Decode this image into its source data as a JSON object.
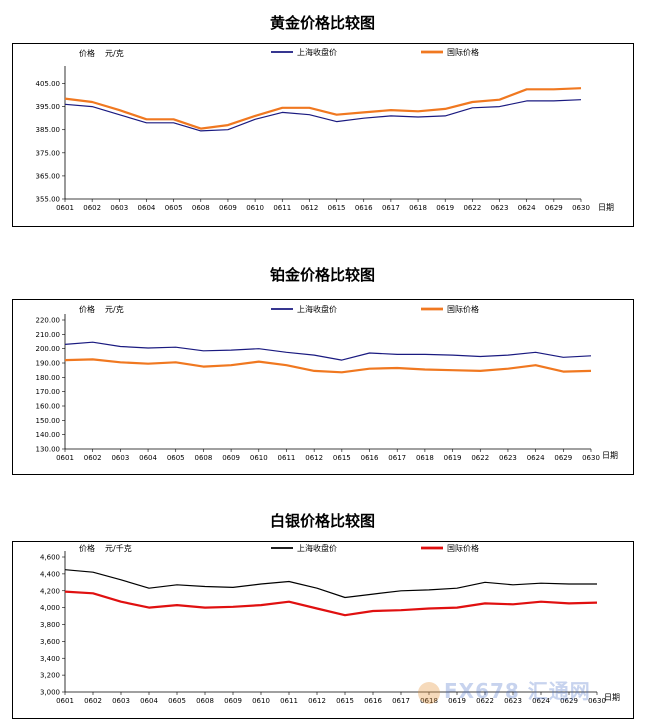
{
  "chart_data": [
    {
      "type": "line",
      "title": "黄金价格比较图",
      "ylabel": "价格",
      "unit": "元/克",
      "xlabel": "日期",
      "categories": [
        "0601",
        "0602",
        "0603",
        "0604",
        "0605",
        "0608",
        "0609",
        "0610",
        "0611",
        "0612",
        "0615",
        "0616",
        "0617",
        "0618",
        "0619",
        "0622",
        "0623",
        "0624",
        "0629",
        "0630"
      ],
      "ylim": [
        355,
        410
      ],
      "yticks": [
        "355.00",
        "365.00",
        "375.00",
        "385.00",
        "395.00",
        "405.00"
      ],
      "ytick_values": [
        355,
        365,
        375,
        385,
        395,
        405
      ],
      "legend_position": "top",
      "series": [
        {
          "name": "上海收盘价",
          "color": "#1a1a80",
          "width": 1.2,
          "values": [
            396,
            395,
            391.5,
            388,
            388,
            384.5,
            385,
            389.5,
            392.5,
            391.5,
            388.5,
            390,
            391,
            390.5,
            391,
            394.5,
            395,
            397.5,
            397.5,
            398
          ]
        },
        {
          "name": "国际价格",
          "color": "#f07820",
          "width": 2.2,
          "values": [
            398.5,
            397,
            393.5,
            389.5,
            389.5,
            385.5,
            387,
            391,
            394.5,
            394.5,
            391.5,
            392.5,
            393.5,
            393,
            394,
            397,
            398,
            402.5,
            402.5,
            403
          ]
        }
      ]
    },
    {
      "type": "line",
      "title": "铂金价格比较图",
      "ylabel": "价格",
      "unit": "元/克",
      "xlabel": "日期",
      "categories": [
        "0601",
        "0602",
        "0603",
        "0604",
        "0605",
        "0608",
        "0609",
        "0610",
        "0611",
        "0612",
        "0615",
        "0616",
        "0617",
        "0618",
        "0619",
        "0622",
        "0623",
        "0624",
        "0629",
        "0630"
      ],
      "ylim": [
        130,
        220
      ],
      "yticks": [
        "130.00",
        "140.00",
        "150.00",
        "160.00",
        "170.00",
        "180.00",
        "190.00",
        "200.00",
        "210.00",
        "220.00"
      ],
      "ytick_values": [
        130,
        140,
        150,
        160,
        170,
        180,
        190,
        200,
        210,
        220
      ],
      "legend_position": "top",
      "series": [
        {
          "name": "上海收盘价",
          "color": "#1a1a80",
          "width": 1.2,
          "values": [
            203,
            204.5,
            201.5,
            200.5,
            201,
            198.5,
            199,
            200,
            197.5,
            195.5,
            192,
            197,
            196,
            196,
            195.5,
            194.5,
            195.5,
            197.5,
            194,
            195
          ]
        },
        {
          "name": "国际价格",
          "color": "#f07820",
          "width": 2.2,
          "values": [
            192,
            192.5,
            190.5,
            189.5,
            190.5,
            187.5,
            188.5,
            191,
            188.5,
            184.5,
            183.5,
            186,
            186.5,
            185.5,
            185,
            184.5,
            186,
            188.5,
            184,
            184.5
          ]
        }
      ]
    },
    {
      "type": "line",
      "title": "白银价格比较图",
      "ylabel": "价格",
      "unit": "元/千克",
      "xlabel": "日期",
      "categories": [
        "0601",
        "0602",
        "0603",
        "0604",
        "0605",
        "0608",
        "0609",
        "0610",
        "0611",
        "0612",
        "0615",
        "0616",
        "0617",
        "0618",
        "0619",
        "0622",
        "0623",
        "0624",
        "0629",
        "0630"
      ],
      "ylim": [
        3000,
        4600
      ],
      "yticks": [
        "3,000",
        "3,200",
        "3,400",
        "3,600",
        "3,800",
        "4,000",
        "4,200",
        "4,400",
        "4,600"
      ],
      "ytick_values": [
        3000,
        3200,
        3400,
        3600,
        3800,
        4000,
        4200,
        4400,
        4600
      ],
      "legend_position": "top",
      "series": [
        {
          "name": "上海收盘价",
          "color": "#000000",
          "width": 1.2,
          "values": [
            4450,
            4420,
            4330,
            4230,
            4270,
            4250,
            4240,
            4280,
            4310,
            4230,
            4120,
            4160,
            4200,
            4210,
            4230,
            4300,
            4270,
            4290,
            4280,
            4280
          ]
        },
        {
          "name": "国际价格",
          "color": "#e01010",
          "width": 2.2,
          "values": [
            4190,
            4170,
            4070,
            4000,
            4030,
            4000,
            4010,
            4030,
            4070,
            3990,
            3910,
            3960,
            3970,
            3990,
            4000,
            4050,
            4040,
            4070,
            4050,
            4060
          ]
        }
      ]
    }
  ],
  "watermark": "FX678 汇通网"
}
